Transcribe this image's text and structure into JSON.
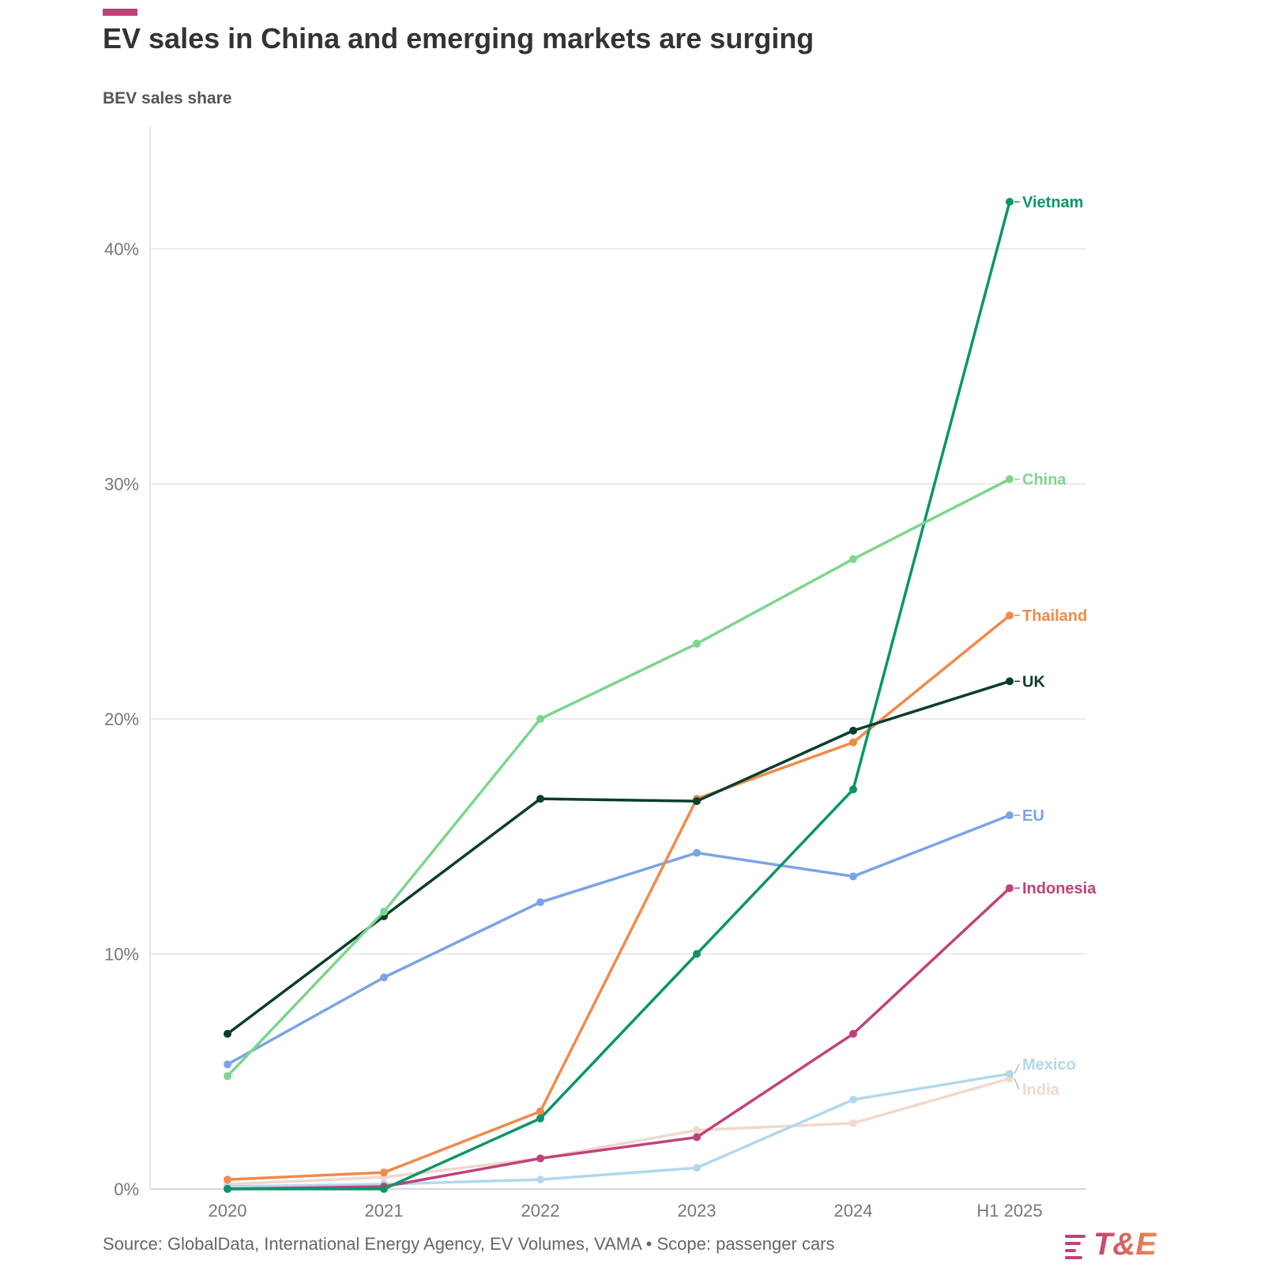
{
  "title": "EV sales in China and emerging markets are surging",
  "subtitle": "BEV sales share",
  "source": "Source: GlobalData, International Energy Agency, EV Volumes, VAMA • Scope: passenger cars",
  "logo": "T&E",
  "colors": {
    "accent": "#c0427a",
    "grid": "#e6e6e6",
    "axis_text": "#777777"
  },
  "chart_data": {
    "type": "line",
    "x": [
      "2020",
      "2021",
      "2022",
      "2023",
      "2024",
      "H1 2025"
    ],
    "ylim": [
      0,
      45
    ],
    "yticks": [
      0,
      10,
      20,
      30,
      40
    ],
    "ytick_labels": [
      "0%",
      "10%",
      "20%",
      "30%",
      "40%"
    ],
    "grid": true,
    "legend": "direct labels at line ends",
    "series": [
      {
        "name": "India",
        "color": "#f0d8cc",
        "values": [
          0.2,
          0.5,
          1.3,
          2.5,
          2.8,
          4.7
        ]
      },
      {
        "name": "Mexico",
        "color": "#b2d8ee",
        "values": [
          0.1,
          0.2,
          0.4,
          0.9,
          3.8,
          4.9
        ]
      },
      {
        "name": "Indonesia",
        "color": "#c0427a",
        "values": [
          0.0,
          0.1,
          1.3,
          2.2,
          6.6,
          12.8
        ]
      },
      {
        "name": "EU",
        "color": "#7ba3e8",
        "values": [
          5.3,
          9.0,
          12.2,
          14.3,
          13.3,
          15.9
        ]
      },
      {
        "name": "Thailand",
        "color": "#f08a4b",
        "values": [
          0.4,
          0.7,
          3.3,
          16.6,
          19.0,
          24.4
        ]
      },
      {
        "name": "Vietnam",
        "color": "#0b9568",
        "values": [
          0.0,
          0.0,
          3.0,
          10.0,
          17.0,
          42.0
        ]
      },
      {
        "name": "UK",
        "color": "#0a3d2e",
        "values": [
          6.6,
          11.6,
          16.6,
          16.5,
          19.5,
          21.6
        ]
      },
      {
        "name": "China",
        "color": "#7dd58e",
        "values": [
          4.8,
          11.8,
          20.0,
          23.2,
          26.8,
          30.2
        ]
      }
    ]
  }
}
